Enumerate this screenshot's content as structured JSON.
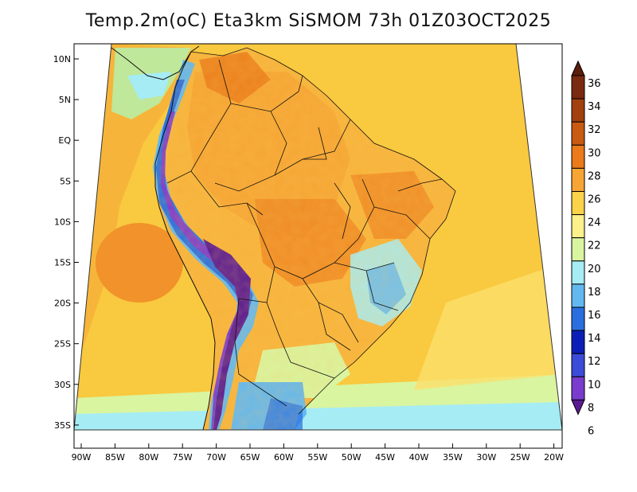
{
  "title": "Temp.2m(oC) Eta3km SiSMOM 73h 01Z03OCT2025",
  "latitude_labels": [
    "10N",
    "5N",
    "EQ",
    "5S",
    "10S",
    "15S",
    "20S",
    "25S",
    "30S",
    "35S"
  ],
  "longitude_labels": [
    "90W",
    "85W",
    "80W",
    "75W",
    "70W",
    "65W",
    "60W",
    "55W",
    "50W",
    "45W",
    "40W",
    "35W",
    "30W",
    "25W",
    "20W"
  ],
  "colorbar": {
    "labels": [
      "36",
      "34",
      "32",
      "30",
      "28",
      "26",
      "24",
      "22",
      "20",
      "18",
      "16",
      "14",
      "12",
      "10",
      "8",
      "6"
    ],
    "colors": [
      "#5a1e0a",
      "#7a2a10",
      "#a2400f",
      "#c85a12",
      "#ea7a1a",
      "#f6a534",
      "#fbd24a",
      "#fbf08a",
      "#d9f5a0",
      "#a6ecf5",
      "#63b8f0",
      "#2a6fe0",
      "#0b1fb8",
      "#3b4cd8",
      "#7a3ccd",
      "#5a1b92"
    ]
  }
}
